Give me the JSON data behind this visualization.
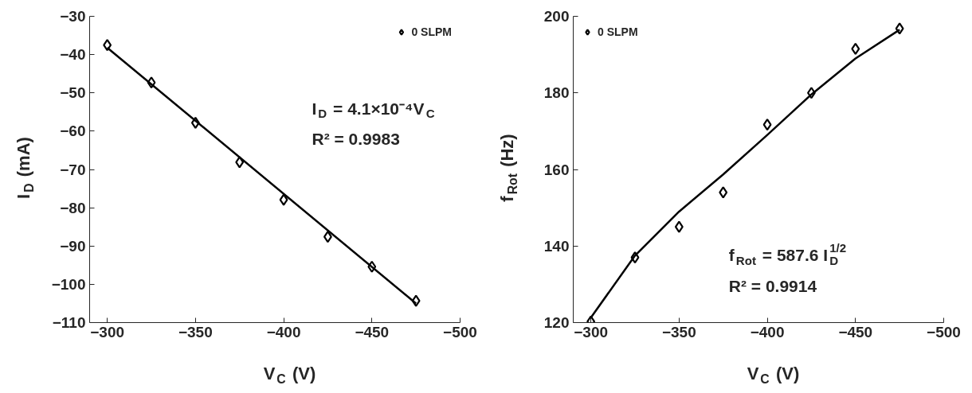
{
  "chart_data": [
    {
      "type": "scatter",
      "xlabel": "V$_{C}$ (V)",
      "ylabel": "I$_{D}$ (mA)",
      "x": [
        -300,
        -325,
        -350,
        -375,
        -400,
        -425,
        -450,
        -475
      ],
      "series": [
        {
          "name": "0 SLPM",
          "color": "#000000",
          "values": [
            -37.5,
            -47.3,
            -57.8,
            -68.1,
            -77.9,
            -87.6,
            -95.4,
            -104.3
          ]
        },
        {
          "type": "line",
          "marker": "none",
          "color": "#000000",
          "x": [
            -300,
            -475
          ],
          "values": [
            -38.2,
            -105.0
          ]
        }
      ],
      "xlim": [
        -290,
        -500
      ],
      "xticks": [
        -300,
        -350,
        -400,
        -450,
        -500
      ],
      "ylim": [
        -110,
        -30
      ],
      "yticks": [
        -110,
        -100,
        -90,
        -80,
        -70,
        -60,
        -50,
        -40,
        -30
      ],
      "annotations": [
        "I$_{D}$ = 4.1×10⁻⁴V$_{C}$",
        "R² = 0.9983"
      ],
      "marker": "diamond",
      "line_style": "solid",
      "grid": false,
      "legend": "top right"
    },
    {
      "type": "scatter",
      "xlabel": "V$_{C}$ (V)",
      "ylabel": "f$_{Rot}$ (Hz)",
      "x": [
        -300,
        -325,
        -350,
        -375,
        -400,
        -425,
        -450,
        -475
      ],
      "series": [
        {
          "name": "0 SLPM",
          "color": "#000000",
          "values": [
            120.3,
            137.0,
            145.0,
            154.0,
            171.7,
            180.0,
            191.5,
            196.8
          ]
        },
        {
          "type": "line",
          "marker": "none",
          "color": "#000000",
          "x": [
            -300,
            -325,
            -350,
            -375,
            -400,
            -425,
            -450,
            -475
          ],
          "values": [
            121.3,
            137.5,
            149.0,
            158.7,
            169.0,
            179.6,
            189.0,
            196.5
          ]
        }
      ],
      "xlim": [
        -290,
        -500
      ],
      "xticks": [
        -300,
        -350,
        -400,
        -450,
        -500
      ],
      "ylim": [
        120,
        200
      ],
      "yticks": [
        120,
        140,
        160,
        180,
        200
      ],
      "annotations": [
        "f$_{Rot}$ = 587.6 I$_{D}$$^{1/2}$",
        "R² = 0.9914"
      ],
      "marker": "diamond",
      "line_style": "solid",
      "grid": false,
      "legend": "top left"
    }
  ]
}
